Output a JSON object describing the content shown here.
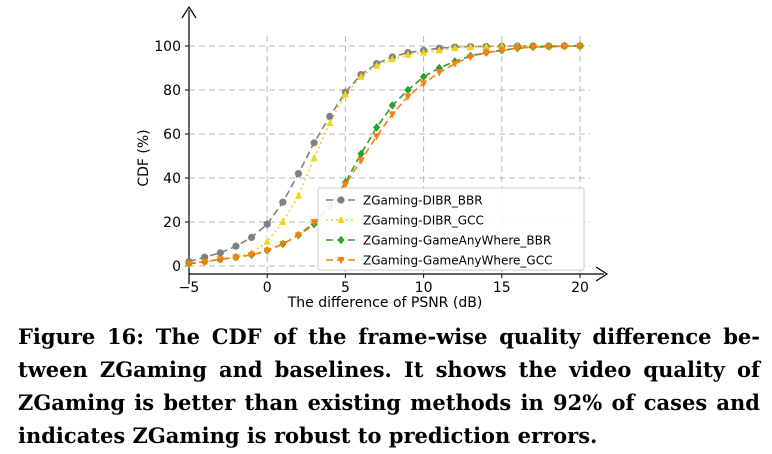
{
  "chart_data": {
    "type": "line",
    "title": "",
    "xlabel": "The difference of PSNR (dB)",
    "ylabel": "CDF (%)",
    "xlim": [
      -5,
      20
    ],
    "ylim": [
      0,
      100
    ],
    "xticks": [
      -5,
      0,
      5,
      10,
      15,
      20
    ],
    "xtick_labels": [
      "−5",
      "0",
      "5",
      "10",
      "15",
      "20"
    ],
    "yticks": [
      0,
      20,
      40,
      60,
      80,
      100
    ],
    "ytick_labels": [
      "0",
      "20",
      "40",
      "60",
      "80",
      "100"
    ],
    "grid": true,
    "legend_position": "lower-right",
    "series": [
      {
        "name": "ZGaming-DIBR_BBR",
        "color": "#808080",
        "marker": "circle",
        "x": [
          -5,
          -4,
          -3,
          -2,
          -1,
          0,
          1,
          2,
          3,
          4,
          5,
          6,
          7,
          8,
          9,
          10,
          11,
          12,
          13,
          14,
          15,
          16,
          17,
          18,
          19,
          20
        ],
        "y": [
          2,
          4,
          6,
          9,
          13,
          19,
          29,
          42,
          56,
          68,
          79,
          87,
          92,
          95,
          97,
          98,
          99,
          99.5,
          99.7,
          99.8,
          99.9,
          100,
          100,
          100,
          100,
          100
        ]
      },
      {
        "name": "ZGaming-DIBR_GCC",
        "color": "#f2d21b",
        "marker": "triangle-up",
        "x": [
          -5,
          -4,
          -3,
          -2,
          -1,
          0,
          1,
          2,
          3,
          4,
          5,
          6,
          7,
          8,
          9,
          10,
          11,
          12,
          13,
          14,
          15,
          16,
          17,
          18,
          19,
          20
        ],
        "y": [
          1,
          2,
          3,
          4,
          6,
          11,
          20,
          32,
          49,
          65,
          78,
          86,
          91,
          94,
          96,
          97,
          98,
          99,
          99.5,
          99.7,
          99.8,
          99.9,
          100,
          100,
          100,
          100
        ]
      },
      {
        "name": "ZGaming-GameAnyWhere_BBR",
        "color": "#2ca02c",
        "marker": "diamond",
        "x": [
          -5,
          -4,
          -3,
          -2,
          -1,
          0,
          1,
          2,
          3,
          4,
          5,
          6,
          7,
          8,
          9,
          10,
          11,
          12,
          13,
          14,
          15,
          16,
          17,
          18,
          19,
          20
        ],
        "y": [
          1,
          2,
          3,
          4,
          5,
          7,
          10,
          14,
          19,
          27,
          38,
          51,
          63,
          73,
          80,
          86,
          90,
          93,
          95.5,
          97,
          98,
          99,
          99.5,
          99.7,
          99.9,
          100
        ]
      },
      {
        "name": "ZGaming-GameAnyWhere_GCC",
        "color": "#ff7f0e",
        "marker": "triangle-down",
        "x": [
          -5,
          -4,
          -3,
          -2,
          -1,
          0,
          1,
          2,
          3,
          4,
          5,
          6,
          7,
          8,
          9,
          10,
          11,
          12,
          13,
          14,
          15,
          16,
          17,
          18,
          19,
          20
        ],
        "y": [
          1,
          2,
          3,
          4,
          5,
          7,
          10,
          14,
          20,
          28,
          37,
          48,
          59,
          69,
          77,
          83,
          88,
          92,
          95,
          97,
          98,
          99,
          99.5,
          99.7,
          99.9,
          100
        ]
      }
    ]
  },
  "caption": {
    "text": "Figure 16: The CDF of the frame-wise quality difference be- tween ZGaming and baselines. It shows the video quality of ZGaming is better than existing methods in 92% of cases and indicates ZGaming is robust to prediction errors."
  }
}
